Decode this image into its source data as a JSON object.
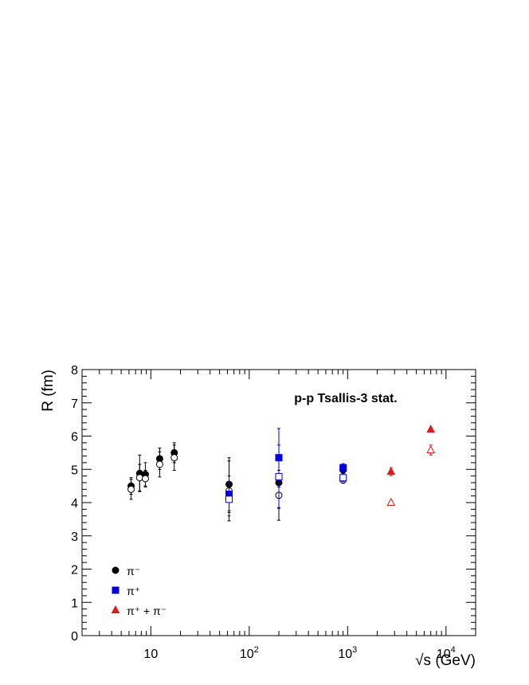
{
  "chart_data": {
    "type": "scatter",
    "title": "p-p  Tsallis-3 stat.",
    "xlabel": "√s (GeV)",
    "ylabel": "R (fm)",
    "x_scale": "log",
    "xlim": [
      2,
      20000
    ],
    "ylim": [
      0,
      8
    ],
    "x_tick_labels": [
      "10",
      "10^2",
      "10^3",
      "10^4"
    ],
    "y_tick_labels": [
      "0",
      "1",
      "2",
      "3",
      "4",
      "5",
      "6",
      "7",
      "8"
    ],
    "grid": false,
    "legend_position": "bottom-left",
    "legend": [
      {
        "label": "π⁻",
        "marker": "circle",
        "color": "#000000"
      },
      {
        "label": "π⁺",
        "marker": "square",
        "color": "#0000e0"
      },
      {
        "label": "π⁺ + π⁻",
        "marker": "triangle",
        "color": "#e01a1a"
      }
    ],
    "series": [
      {
        "key": "pim_closed",
        "marker": "circle",
        "filled": true,
        "color": "#000000",
        "points": [
          {
            "x": 6.3,
            "y": 4.5,
            "err": 0.25
          },
          {
            "x": 7.7,
            "y": 4.88,
            "err": 0.55
          },
          {
            "x": 8.8,
            "y": 4.85,
            "err": 0.35
          },
          {
            "x": 12.3,
            "y": 5.32,
            "err": 0.32
          },
          {
            "x": 17.3,
            "y": 5.5,
            "err": 0.3
          },
          {
            "x": 62.4,
            "y": 4.55,
            "err": 0.8
          },
          {
            "x": 200,
            "y": 4.6,
            "err": 0.75
          },
          {
            "x": 900,
            "y": 4.98,
            "err": 0.1
          }
        ]
      },
      {
        "key": "pim_open",
        "marker": "circle",
        "filled": false,
        "color": "#000000",
        "points": [
          {
            "x": 6.3,
            "y": 4.4,
            "err": 0.3
          },
          {
            "x": 7.7,
            "y": 4.75,
            "err": 0.4
          },
          {
            "x": 8.8,
            "y": 4.72,
            "err": 0.25
          },
          {
            "x": 12.3,
            "y": 5.15,
            "err": 0.38
          },
          {
            "x": 17.3,
            "y": 5.35,
            "err": 0.38
          },
          {
            "x": 62.4,
            "y": 4.35,
            "err": 0.9
          },
          {
            "x": 200,
            "y": 4.22,
            "err": 0.75
          },
          {
            "x": 900,
            "y": 4.68,
            "err": 0.1
          }
        ]
      },
      {
        "key": "pip_closed",
        "marker": "square",
        "filled": true,
        "color": "#0000e0",
        "points": [
          {
            "x": 62.4,
            "y": 4.25,
            "err": 0.55
          },
          {
            "x": 200,
            "y": 5.35,
            "err": 0.88
          },
          {
            "x": 900,
            "y": 5.05,
            "err": 0.12
          }
        ]
      },
      {
        "key": "pip_open",
        "marker": "square",
        "filled": false,
        "color": "#0000e0",
        "points": [
          {
            "x": 62.4,
            "y": 4.1,
            "err": 0.5
          },
          {
            "x": 200,
            "y": 4.78,
            "err": 0.95
          },
          {
            "x": 900,
            "y": 4.75,
            "err": 0.12
          }
        ]
      },
      {
        "key": "sum_closed",
        "marker": "triangle",
        "filled": true,
        "color": "#e01a1a",
        "points": [
          {
            "x": 2760,
            "y": 4.93,
            "err": 0.12
          },
          {
            "x": 7000,
            "y": 6.2,
            "err": 0.05
          }
        ]
      },
      {
        "key": "sum_open",
        "marker": "triangle",
        "filled": false,
        "color": "#e01a1a",
        "points": [
          {
            "x": 2760,
            "y": 4.0,
            "err": 0.05
          },
          {
            "x": 7000,
            "y": 5.58,
            "err": 0.15
          }
        ]
      }
    ]
  }
}
